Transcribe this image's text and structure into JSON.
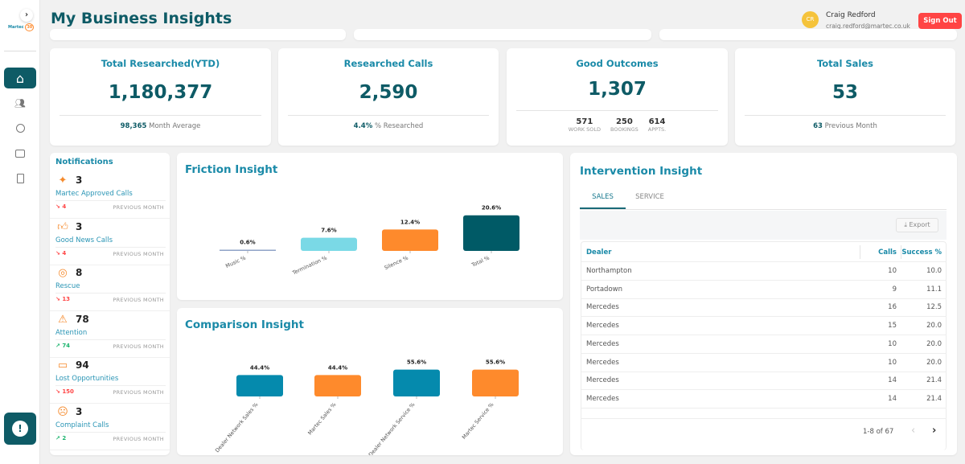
{
  "header": {
    "title": "My Business Insights",
    "user_initials": "CR",
    "user_name": "Craig Redford",
    "user_email": "craig.redford@martec.co.uk",
    "sign_out": "Sign Out"
  },
  "sidebar": {
    "logo": "Martec 30",
    "items": [
      {
        "icon": "home-icon",
        "active": true
      },
      {
        "icon": "users-icon"
      },
      {
        "icon": "user-circle-icon"
      },
      {
        "icon": "chat-icon"
      },
      {
        "icon": "document-icon"
      }
    ],
    "help_icon": "alert-circle-icon"
  },
  "stats": [
    {
      "title": "Total Researched(YTD)",
      "value": "1,180,377",
      "sub_value": "98,365",
      "sub_label": "Month Average"
    },
    {
      "title": "Researched Calls",
      "value": "2,590",
      "sub_value": "4.4%",
      "sub_label": "% Researched"
    },
    {
      "title": "Good Outcomes",
      "value": "1,307",
      "breakdown": [
        {
          "value": "571",
          "label": "WORK SOLD"
        },
        {
          "value": "250",
          "label": "BOOKINGS"
        },
        {
          "value": "614",
          "label": "APPTS."
        }
      ]
    },
    {
      "title": "Total Sales",
      "value": "53",
      "sub_value": "63",
      "sub_label": "Previous Month"
    }
  ],
  "notifications": {
    "title": "Notifications",
    "items": [
      {
        "icon": "sparkle-icon",
        "count": "3",
        "label": "Martec Approved Calls",
        "trend": "down",
        "prev": "4",
        "prev_label": "PREVIOUS MONTH"
      },
      {
        "icon": "thumbs-up-icon",
        "count": "3",
        "label": "Good News Calls",
        "trend": "down",
        "prev": "4",
        "prev_label": "PREVIOUS MONTH"
      },
      {
        "icon": "lifebuoy-icon",
        "count": "8",
        "label": "Rescue",
        "trend": "down",
        "prev": "13",
        "prev_label": "PREVIOUS MONTH"
      },
      {
        "icon": "warning-icon",
        "count": "78",
        "label": "Attention",
        "trend": "up",
        "prev": "74",
        "prev_label": "PREVIOUS MONTH"
      },
      {
        "icon": "money-x-icon",
        "count": "94",
        "label": "Lost Opportunities",
        "trend": "down",
        "prev": "150",
        "prev_label": "PREVIOUS MONTH"
      },
      {
        "icon": "sad-face-icon",
        "count": "3",
        "label": "Complaint Calls",
        "trend": "up",
        "prev": "2",
        "prev_label": "PREVIOUS MONTH"
      }
    ]
  },
  "colors": {
    "teal_dark": "#0e5b66",
    "teal": "#1a8aa8",
    "light_blue": "#7ad9e6",
    "orange": "#fe8a2c",
    "blue": "#058aad",
    "red": "#f44",
    "green": "#1cb46e"
  },
  "chart_data": [
    {
      "type": "bar",
      "title": "Friction Insight",
      "categories": [
        "Music %",
        "Termination %",
        "Silence %",
        "Total %"
      ],
      "values": [
        0.6,
        7.6,
        12.4,
        20.6
      ],
      "labels": [
        "0.6%",
        "7.6%",
        "12.4%",
        "20.6%"
      ],
      "colors": [
        "#8fa3c7",
        "#7ad9e6",
        "#fe8a2c",
        "#005a66"
      ]
    },
    {
      "type": "bar",
      "title": "Comparison Insight",
      "categories": [
        "Dealer Network Sales %",
        "Martec Sales %",
        "Dealer Network Service %",
        "Martec Service %"
      ],
      "values": [
        44.4,
        44.4,
        55.6,
        55.6
      ],
      "labels": [
        "44.4%",
        "44.4%",
        "55.6%",
        "55.6%"
      ],
      "colors": [
        "#058aad",
        "#fe8a2c",
        "#058aad",
        "#fe8a2c"
      ]
    }
  ],
  "intervention": {
    "title": "Intervention Insight",
    "tabs": [
      {
        "label": "SALES",
        "active": true
      },
      {
        "label": "SERVICE"
      }
    ],
    "export": "Export",
    "columns": [
      "Dealer",
      "Calls",
      "Success %"
    ],
    "rows": [
      [
        "Northampton",
        "10",
        "10.0"
      ],
      [
        "Portadown",
        "9",
        "11.1"
      ],
      [
        "Mercedes",
        "16",
        "12.5"
      ],
      [
        "Mercedes",
        "15",
        "20.0"
      ],
      [
        "Mercedes",
        "10",
        "20.0"
      ],
      [
        "Mercedes",
        "10",
        "20.0"
      ],
      [
        "Mercedes",
        "14",
        "21.4"
      ],
      [
        "Mercedes",
        "14",
        "21.4"
      ]
    ],
    "pagination": "1-8 of 67"
  }
}
